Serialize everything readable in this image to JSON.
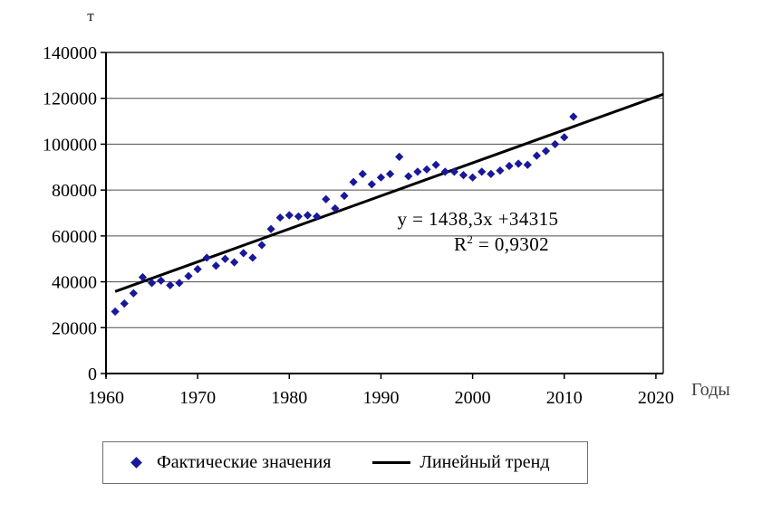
{
  "chart_data": {
    "type": "scatter",
    "title": "",
    "y_axis_title": "т",
    "x_axis_title": "Годы",
    "xlim": [
      1960,
      2020.8
    ],
    "ylim": [
      0,
      140000
    ],
    "x_ticks": [
      1960,
      1970,
      1980,
      1990,
      2000,
      2010,
      2020
    ],
    "y_ticks": [
      0,
      20000,
      40000,
      60000,
      80000,
      100000,
      120000,
      140000
    ],
    "grid": "horizontal",
    "legend_position": "bottom",
    "colors": {
      "marker": "#18189A",
      "trend": "#000000",
      "grid": "#4d4d4d",
      "axis": "#000000"
    },
    "series": [
      {
        "name": "Фактические значения",
        "type": "scatter",
        "marker": "diamond",
        "points": [
          [
            1961,
            27000
          ],
          [
            1962,
            30500
          ],
          [
            1963,
            35000
          ],
          [
            1964,
            42000
          ],
          [
            1965,
            39500
          ],
          [
            1966,
            40500
          ],
          [
            1967,
            38500
          ],
          [
            1968,
            39500
          ],
          [
            1969,
            42500
          ],
          [
            1970,
            45500
          ],
          [
            1971,
            50500
          ],
          [
            1972,
            47000
          ],
          [
            1973,
            50000
          ],
          [
            1974,
            48500
          ],
          [
            1975,
            52500
          ],
          [
            1976,
            50500
          ],
          [
            1977,
            56000
          ],
          [
            1978,
            63000
          ],
          [
            1979,
            68000
          ],
          [
            1980,
            69000
          ],
          [
            1981,
            68500
          ],
          [
            1982,
            69000
          ],
          [
            1983,
            68500
          ],
          [
            1984,
            76000
          ],
          [
            1985,
            72000
          ],
          [
            1986,
            77500
          ],
          [
            1987,
            83500
          ],
          [
            1988,
            87000
          ],
          [
            1989,
            82500
          ],
          [
            1990,
            85500
          ],
          [
            1991,
            87000
          ],
          [
            1992,
            94500
          ],
          [
            1993,
            86000
          ],
          [
            1994,
            88000
          ],
          [
            1995,
            89000
          ],
          [
            1996,
            91000
          ],
          [
            1997,
            88000
          ],
          [
            1998,
            88000
          ],
          [
            1999,
            86500
          ],
          [
            2000,
            85500
          ],
          [
            2001,
            88000
          ],
          [
            2002,
            87000
          ],
          [
            2003,
            88500
          ],
          [
            2004,
            90500
          ],
          [
            2005,
            91500
          ],
          [
            2006,
            91000
          ],
          [
            2007,
            95000
          ],
          [
            2008,
            97000
          ],
          [
            2009,
            100000
          ],
          [
            2010,
            103000
          ],
          [
            2011,
            112000
          ]
        ]
      },
      {
        "name": "Линейный тренд",
        "type": "line",
        "equation": {
          "slope": 1438.3,
          "intercept": 34315,
          "x_origin": 1960,
          "x_start": 1961,
          "x_end": 2020.8
        }
      }
    ],
    "annotations": {
      "equation_line1": "y = 1438,3x +34315",
      "r2_base": "R",
      "r2_sup": "2",
      "r2_rest": " = 0,9302"
    },
    "legend": {
      "items": [
        {
          "label": "Фактические значения",
          "marker": "diamond"
        },
        {
          "label": "Линейный тренд",
          "marker": "line"
        }
      ]
    }
  }
}
